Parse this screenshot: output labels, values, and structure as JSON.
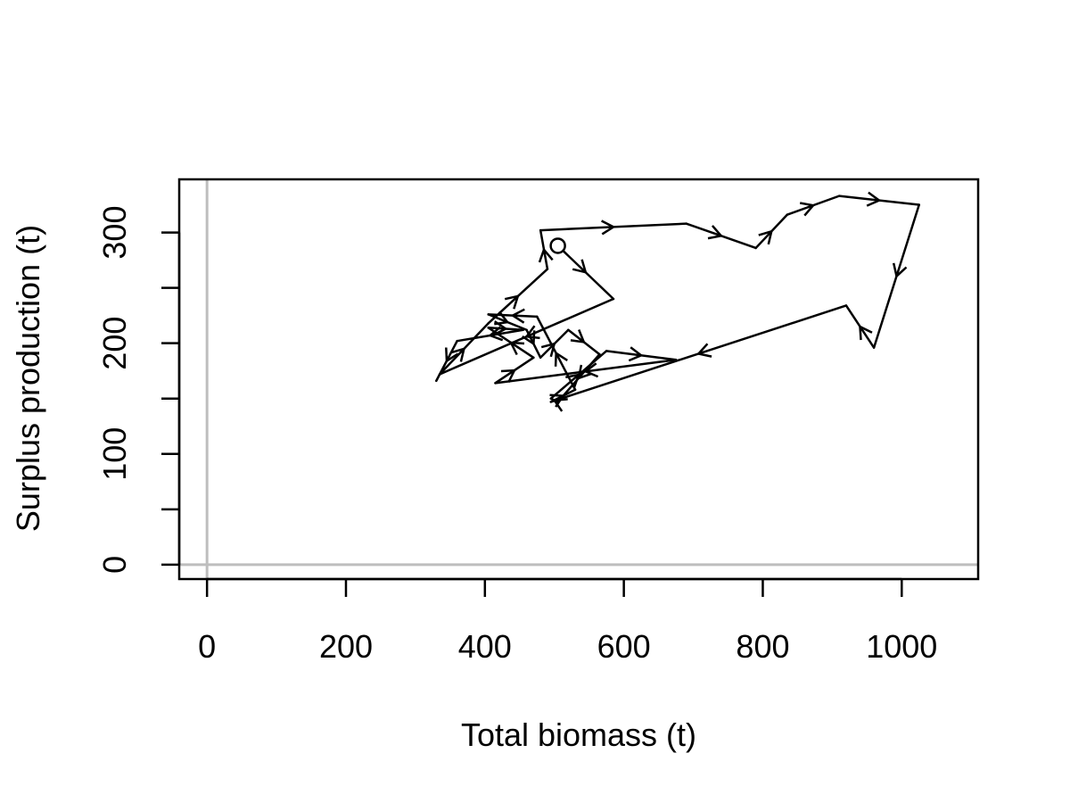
{
  "chart_data": {
    "type": "line",
    "title": "",
    "xlabel": "Total biomass (t)",
    "ylabel": "Surplus production (t)",
    "xlim": [
      -40,
      1110
    ],
    "ylim": [
      -13,
      348
    ],
    "xticks": [
      0,
      200,
      400,
      600,
      800,
      1000
    ],
    "yticks": [
      0,
      50,
      100,
      150,
      200,
      250,
      300
    ],
    "ytick_labels": [
      "0",
      "",
      "100",
      "",
      "200",
      "",
      "300"
    ],
    "reference_lines": {
      "x": 0,
      "y": 0,
      "color": "#bebebe"
    },
    "start_marker": "open-circle",
    "colors": {
      "line": "#000000",
      "reference": "#bebebe",
      "frame": "#000000"
    },
    "series": [
      {
        "x": [
          505,
          585,
          335,
          405,
          490,
          480,
          690,
          790,
          835,
          910,
          1025,
          960,
          920,
          495,
          530,
          475,
          405,
          460,
          480,
          520,
          565,
          505,
          495,
          575,
          675,
          415,
          470,
          405,
          455,
          360,
          330
        ],
        "y": [
          288,
          240,
          172,
          218,
          267,
          302,
          308,
          286,
          316,
          333,
          325,
          196,
          234,
          147,
          158,
          224,
          226,
          212,
          187,
          212,
          190,
          147,
          150,
          193,
          185,
          164,
          187,
          214,
          212,
          202,
          166
        ]
      }
    ]
  }
}
